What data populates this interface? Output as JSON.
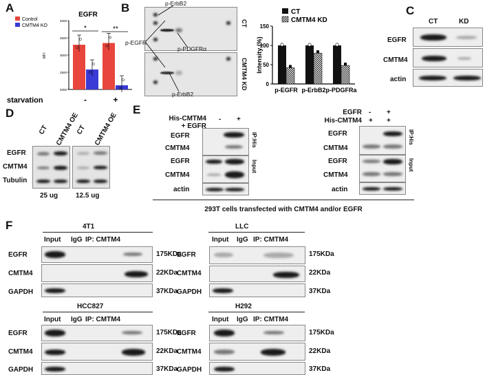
{
  "panels": {
    "A": "A",
    "B": "B",
    "C": "C",
    "D": "D",
    "E": "E",
    "F": "F"
  },
  "panel_a": {
    "title": "EGFR",
    "ylabel": "MFI",
    "legend": [
      "Control",
      "CMTM4 KO"
    ],
    "colors": {
      "control": "#e8453c",
      "ko": "#3a3ad6"
    },
    "xaxis_label": "starvation",
    "groups": [
      "-",
      "+"
    ],
    "significance": [
      "*",
      "**"
    ],
    "yticks": [
      "2000",
      "2500",
      "3000",
      "3500",
      "4000"
    ]
  },
  "chart_data": {
    "type": "bar",
    "title": "EGFR",
    "ylabel": "MFI",
    "xlabel": "starvation",
    "categories": [
      "-",
      "+"
    ],
    "series": [
      {
        "name": "Control",
        "values": [
          3300,
          3350
        ]
      },
      {
        "name": "CMTM4 KO",
        "values": [
          2580,
          2120
        ]
      }
    ],
    "ylim": [
      2000,
      4000
    ],
    "grid": false,
    "legend": "top-left"
  },
  "panel_b": {
    "array_labels": [
      "p-ErbB2",
      "p-EGFR",
      "p-PDGFRα",
      "p-ErbB2"
    ],
    "array_rows": [
      "CT",
      "CMTM4 KD"
    ],
    "legend": [
      "CT",
      "CMTM4 KD"
    ],
    "ylabel": "Intensity (%)",
    "yticks": [
      "0",
      "50",
      "100",
      "150"
    ],
    "categories": [
      "p-EGFR",
      "p-ErbB2",
      "p-PDGFRa"
    ],
    "ct_values": [
      100,
      100,
      100
    ],
    "kd_values": [
      42,
      80,
      48
    ]
  },
  "panel_c": {
    "columns": [
      "CT",
      "KD"
    ],
    "rows": [
      "EGFR",
      "CMTM4",
      "actin"
    ]
  },
  "panel_d": {
    "columns": [
      "CT",
      "CMTM4 OE",
      "CT",
      "CMTM4 OE"
    ],
    "rows": [
      "EGFR",
      "CMTM4",
      "Tubulin"
    ],
    "amounts": [
      "25 ug",
      "12.5 ug"
    ]
  },
  "panel_e": {
    "left_header": [
      "His-CMTM4",
      "+ EGFR"
    ],
    "left_signs": [
      "-",
      "+"
    ],
    "right_header": [
      "EGFR",
      "His-CMTM4"
    ],
    "right_signs": [
      [
        "-",
        "+"
      ],
      [
        "+",
        "+"
      ]
    ],
    "rows": [
      "EGFR",
      "CMTM4",
      "EGFR",
      "CMTM4",
      "actin"
    ],
    "side_labels": [
      "IP:His",
      "Input"
    ],
    "caption": "293T cells transfected with CMTM4 and/or EGFR"
  },
  "panel_f": {
    "blocks": [
      {
        "cell_line": "4T1",
        "columns": [
          "Input",
          "IgG",
          "IP: CMTM4"
        ]
      },
      {
        "cell_line": "LLC",
        "columns": [
          "Input",
          "IgG",
          "IP: CMTM4"
        ]
      },
      {
        "cell_line": "HCC827",
        "columns": [
          "Input",
          "IgG",
          "IP: CMTM4"
        ]
      },
      {
        "cell_line": "H292",
        "columns": [
          "Input",
          "IgG",
          "IP: CMTM4"
        ]
      }
    ],
    "rows": [
      "EGFR",
      "CMTM4",
      "GAPDH"
    ],
    "sizes": [
      "175KDa",
      "22KDa",
      "37KDa"
    ]
  }
}
